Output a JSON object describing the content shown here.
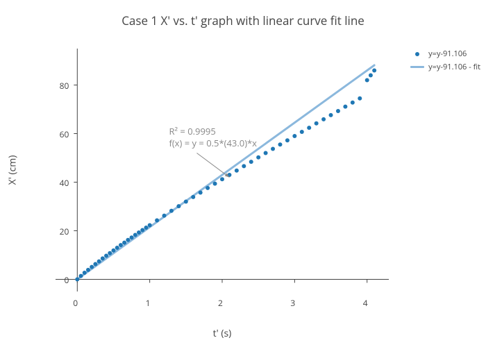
{
  "title": "Case 1 X' vs. t' graph with linear curve fit line",
  "xlabel": "t' (s)",
  "ylabel": "X' (cm)",
  "chart": {
    "type": "scatter+line",
    "background_color": "#ffffff",
    "axis_color": "#444444",
    "tick_color": "#444444",
    "tick_fontsize": 12,
    "label_fontsize": 14,
    "title_fontsize": 17,
    "title_color": "#444444",
    "xlim": [
      -0.3,
      4.3
    ],
    "ylim": [
      -5,
      95
    ],
    "xticks": [
      0,
      1,
      2,
      3,
      4
    ],
    "yticks": [
      0,
      20,
      40,
      60,
      80
    ],
    "zero_line_color": "#444444",
    "zero_line_width": 1,
    "scatter": {
      "name": "y=y-91.106",
      "color": "#1f77b4",
      "marker_size": 4,
      "x": [
        0.0,
        0.05,
        0.1,
        0.15,
        0.2,
        0.25,
        0.3,
        0.35,
        0.4,
        0.45,
        0.5,
        0.55,
        0.6,
        0.65,
        0.7,
        0.75,
        0.8,
        0.85,
        0.9,
        0.95,
        1.0,
        1.1,
        1.2,
        1.3,
        1.4,
        1.5,
        1.6,
        1.7,
        1.8,
        1.9,
        2.0,
        2.1,
        2.2,
        2.3,
        2.4,
        2.5,
        2.6,
        2.7,
        2.8,
        2.9,
        3.0,
        3.1,
        3.2,
        3.3,
        3.4,
        3.5,
        3.6,
        3.7,
        3.8,
        3.9,
        4.0,
        4.05,
        4.1
      ],
      "y": [
        0.0,
        1.4,
        2.7,
        3.9,
        5.1,
        6.3,
        7.4,
        8.6,
        9.7,
        10.8,
        11.9,
        13.0,
        14.1,
        15.1,
        16.2,
        17.2,
        18.3,
        19.3,
        20.3,
        21.3,
        22.3,
        24.3,
        26.2,
        28.2,
        30.1,
        32.0,
        33.9,
        35.7,
        37.6,
        39.4,
        41.2,
        43.0,
        44.8,
        46.6,
        48.4,
        50.2,
        52.0,
        53.7,
        55.5,
        57.2,
        59.0,
        60.7,
        62.4,
        64.2,
        65.9,
        67.6,
        69.3,
        71.1,
        72.8,
        74.5,
        82.0,
        84.0,
        86.0
      ]
    },
    "fit_line": {
      "name": "y=y-91.106 - fit",
      "color": "#8bb8dd",
      "width": 3,
      "x0": 0,
      "y0": 0,
      "x1": 4.1,
      "y1": 88.15
    },
    "annotation": {
      "text1": "R² = 0.9995",
      "text2": "f(x) = y = 0.5*(43.0)*x",
      "color": "#888888",
      "fontsize": 13,
      "arrow_from_x": 1.65,
      "arrow_from_y": 52,
      "arrow_to_x": 2.1,
      "arrow_to_y": 42,
      "arrow_color": "#888888"
    }
  },
  "legend": {
    "items": [
      {
        "label": "y=y-91.106",
        "type": "dot",
        "color": "#1f77b4"
      },
      {
        "label": "y=y-91.106 - fit",
        "type": "line",
        "color": "#8bb8dd"
      }
    ]
  }
}
